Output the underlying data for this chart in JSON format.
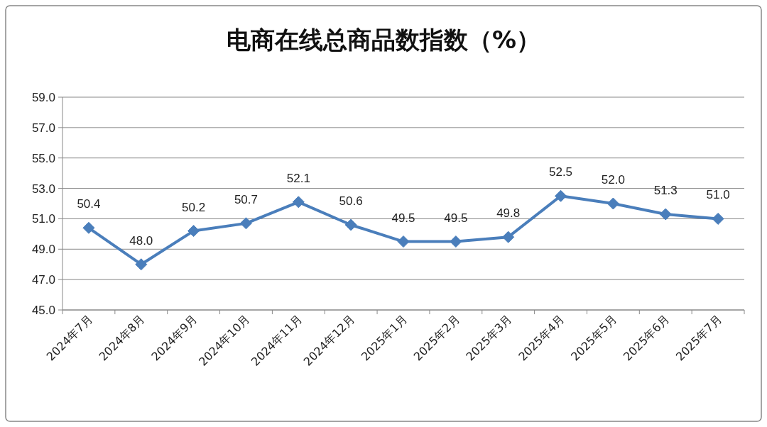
{
  "chart_data": {
    "type": "line",
    "title": "电商在线总商品数指数（%）",
    "categories": [
      "2024年7月",
      "2024年8月",
      "2024年9月",
      "2024年10月",
      "2024年11月",
      "2024年12月",
      "2025年1月",
      "2025年2月",
      "2025年3月",
      "2025年4月",
      "2025年5月",
      "2025年6月",
      "2025年7月"
    ],
    "values": [
      50.4,
      48.0,
      50.2,
      50.7,
      52.1,
      50.6,
      49.5,
      49.5,
      49.8,
      52.5,
      52.0,
      51.3,
      51.0
    ],
    "value_labels": [
      "50.4",
      "48.0",
      "50.2",
      "50.7",
      "52.1",
      "50.6",
      "49.5",
      "49.5",
      "49.8",
      "52.5",
      "52.0",
      "51.3",
      "51.0"
    ],
    "color": "#4a7ebb",
    "marker": "diamond",
    "line_style": "solid",
    "ylim": [
      45,
      59
    ],
    "yticks": [
      {
        "value": 45,
        "label": "45.0"
      },
      {
        "value": 47,
        "label": "47.0"
      },
      {
        "value": 49,
        "label": "49.0"
      },
      {
        "value": 51,
        "label": "51.0"
      },
      {
        "value": 53,
        "label": "53.0"
      },
      {
        "value": 55,
        "label": "55.0"
      },
      {
        "value": 57,
        "label": "57.0"
      },
      {
        "value": 59,
        "label": "59.0"
      }
    ],
    "grid": "y"
  }
}
